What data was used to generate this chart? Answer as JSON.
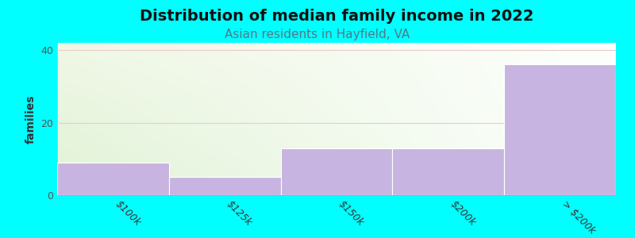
{
  "title": "Distribution of median family income in 2022",
  "subtitle": "Asian residents in Hayfield, VA",
  "categories": [
    "$100k",
    "$125k",
    "$150k",
    "$200k",
    "> $200k"
  ],
  "values": [
    9,
    5,
    13,
    13,
    36
  ],
  "bar_color": "#c8b4e0",
  "ylabel": "families",
  "ylim": [
    0,
    42
  ],
  "yticks": [
    0,
    20,
    40
  ],
  "background_color": "#00ffff",
  "plot_bg_color_topleft": "#e8f5e0",
  "plot_bg_color_topright": "#f8fbf5",
  "plot_bg_color_bottomleft": "#e0f0d8",
  "plot_bg_color_bottomright": "#ffffff",
  "grid_color": "#f0c8c8",
  "title_fontsize": 14,
  "subtitle_fontsize": 11,
  "subtitle_color": "#557788"
}
